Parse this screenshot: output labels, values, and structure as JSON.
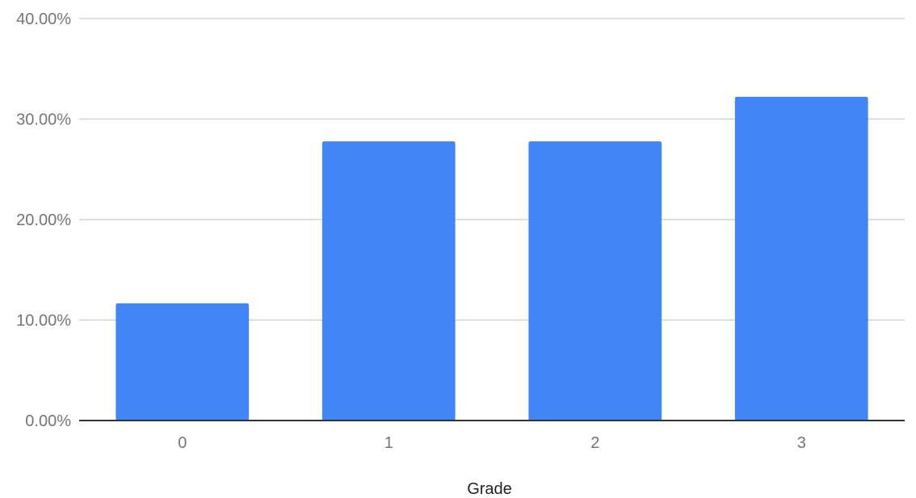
{
  "chart_data": {
    "type": "bar",
    "title": "",
    "xlabel": "Grade",
    "ylabel": "",
    "categories": [
      "0",
      "1",
      "2",
      "3"
    ],
    "values": [
      0.1167,
      0.2778,
      0.2778,
      0.3222
    ],
    "ylim": [
      0,
      0.4
    ],
    "yticks": [
      0,
      0.1,
      0.2,
      0.3,
      0.4
    ],
    "ytick_labels": [
      "0.00%",
      "10.00%",
      "20.00%",
      "30.00%",
      "40.00%"
    ],
    "grid": true,
    "legend": "none",
    "colors": {
      "bar": "#4285f4",
      "grid": "#cccccc",
      "baseline": "#333333"
    }
  }
}
